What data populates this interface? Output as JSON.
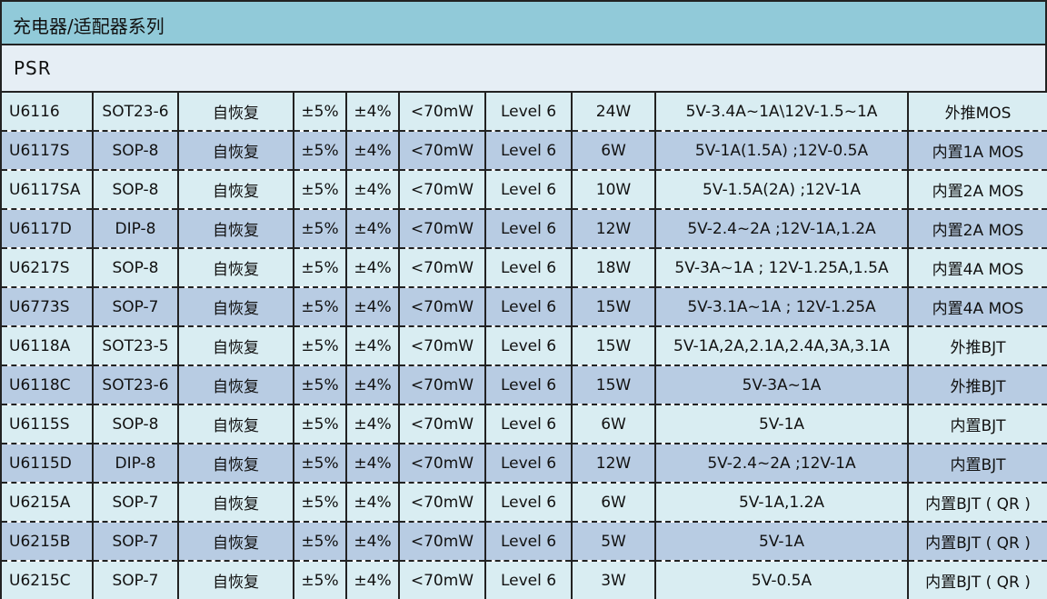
{
  "title": "充电器/适配器系列",
  "section": "PSR",
  "rows": [
    [
      "U6116",
      "SOT23-6",
      "自恢复",
      "±5%",
      "±4%",
      "<70mW",
      "Level 6",
      "24W",
      "5V-3.4A~1A\\12V-1.5~1A",
      "外推MOS"
    ],
    [
      "U6117S",
      "SOP-8",
      "自恢复",
      "±5%",
      "±4%",
      "<70mW",
      "Level 6",
      "6W",
      "5V-1A(1.5A) ;12V-0.5A",
      "内置1A MOS"
    ],
    [
      "U6117SA",
      "SOP-8",
      "自恢复",
      "±5%",
      "±4%",
      "<70mW",
      "Level 6",
      "10W",
      "5V-1.5A(2A) ;12V-1A",
      "内置2A MOS"
    ],
    [
      "U6117D",
      "DIP-8",
      "自恢复",
      "±5%",
      "±4%",
      "<70mW",
      "Level 6",
      "12W",
      "5V-2.4~2A ;12V-1A,1.2A",
      "内置2A MOS"
    ],
    [
      "U6217S",
      "SOP-8",
      "自恢复",
      "±5%",
      "±4%",
      "<70mW",
      "Level 6",
      "18W",
      "5V-3A~1A ; 12V-1.25A,1.5A",
      "内置4A MOS"
    ],
    [
      "U6773S",
      "SOP-7",
      "自恢复",
      "±5%",
      "±4%",
      "<70mW",
      "Level 6",
      "15W",
      "5V-3.1A~1A ; 12V-1.25A",
      "内置4A MOS"
    ],
    [
      "U6118A",
      "SOT23-5",
      "自恢复",
      "±5%",
      "±4%",
      "<70mW",
      "Level 6",
      "15W",
      "5V-1A,2A,2.1A,2.4A,3A,3.1A",
      "外推BJT"
    ],
    [
      "U6118C",
      "SOT23-6",
      "自恢复",
      "±5%",
      "±4%",
      "<70mW",
      "Level 6",
      "15W",
      "5V-3A~1A",
      "外推BJT"
    ],
    [
      "U6115S",
      "SOP-8",
      "自恢复",
      "±5%",
      "±4%",
      "<70mW",
      "Level 6",
      "6W",
      "5V-1A",
      "内置BJT"
    ],
    [
      "U6115D",
      "DIP-8",
      "自恢复",
      "±5%",
      "±4%",
      "<70mW",
      "Level 6",
      "12W",
      "5V-2.4~2A ;12V-1A",
      "内置BJT"
    ],
    [
      "U6215A",
      "SOP-7",
      "自恢复",
      "±5%",
      "±4%",
      "<70mW",
      "Level 6",
      "6W",
      "5V-1A,1.2A",
      "内置BJT ( QR )"
    ],
    [
      "U6215B",
      "SOP-7",
      "自恢复",
      "±5%",
      "±4%",
      "<70mW",
      "Level 6",
      "5W",
      "5V-1A",
      "内置BJT ( QR )"
    ],
    [
      "U6215C",
      "SOP-7",
      "自恢复",
      "±5%",
      "±4%",
      "<70mW",
      "Level 6",
      "3W",
      "5V-0.5A",
      "内置BJT ( QR )"
    ]
  ],
  "colors": {
    "title_bg": "#91cad9",
    "section_bg": "#e6eef5",
    "row_light": "#d9edf2",
    "row_blue": "#b8cce3"
  }
}
